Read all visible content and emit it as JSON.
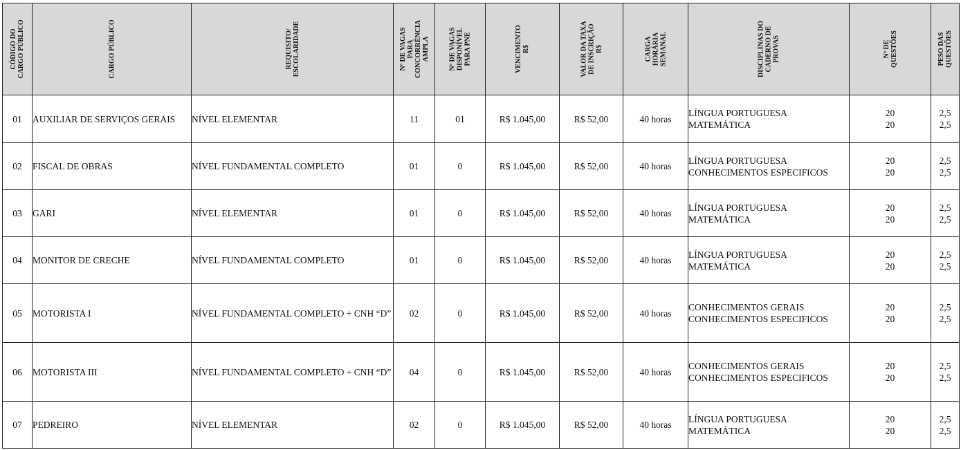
{
  "headers": {
    "codigo": "CÓDIGO DO\nCARGO PÚBLICO",
    "cargo": "CARGO PÚBLICO",
    "requisito": "REQUISITO/\nESCOLARIDADE",
    "vagas_ampla": "Nº DE VAGAS\nPARA\nCONCORRÊNCIA\nAMPLA",
    "vagas_pne": "Nº DE VAGAS\nDISPONÍVEL\nPARA PNE",
    "vencimento": "VENCIMENTO\nR$",
    "taxa": "VALOR DA TAXA\nDE INSCRIÇÃO\nR$",
    "carga": "CARGA\nHORÁRIA\nSEMANAL",
    "disciplinas": "DISCIPLINAS DO\nCADERNO DE\nPROVAS",
    "questoes": "Nº DE\nQUESTÕES",
    "peso": "PESO DAS\nQUESTÕES"
  },
  "rows": [
    {
      "codigo": "01",
      "cargo": "AUXILIAR DE SERVIÇOS GERAIS",
      "requisito": "NÍVEL ELEMENTAR",
      "vagas_ampla": "11",
      "vagas_pne": "01",
      "vencimento": "R$ 1.045,00",
      "taxa": "R$ 52,00",
      "carga": "40 horas",
      "disciplinas": [
        "LÍNGUA PORTUGUESA",
        "MATEMÁTICA"
      ],
      "questoes": [
        "20",
        "20"
      ],
      "peso": [
        "2,5",
        "2,5"
      ]
    },
    {
      "codigo": "02",
      "cargo": "FISCAL DE OBRAS",
      "requisito": "NÍVEL FUNDAMENTAL COMPLETO",
      "vagas_ampla": "01",
      "vagas_pne": "0",
      "vencimento": "R$ 1.045,00",
      "taxa": "R$ 52,00",
      "carga": "40 horas",
      "disciplinas": [
        "LÍNGUA PORTUGUESA",
        "CONHECIMENTOS ESPECIFICOS"
      ],
      "questoes": [
        "20",
        "20"
      ],
      "peso": [
        "2,5",
        "2,5"
      ]
    },
    {
      "codigo": "03",
      "cargo": "GARI",
      "requisito": "NÍVEL ELEMENTAR",
      "vagas_ampla": "01",
      "vagas_pne": "0",
      "vencimento": "R$ 1.045,00",
      "taxa": "R$ 52,00",
      "carga": "40 horas",
      "disciplinas": [
        "LÍNGUA PORTUGUESA",
        "MATEMÁTICA"
      ],
      "questoes": [
        "20",
        "20"
      ],
      "peso": [
        "2,5",
        "2,5"
      ]
    },
    {
      "codigo": "04",
      "cargo": "MONITOR DE CRECHE",
      "requisito": "NÍVEL FUNDAMENTAL COMPLETO",
      "vagas_ampla": "01",
      "vagas_pne": "0",
      "vencimento": "R$ 1.045,00",
      "taxa": "R$ 52,00",
      "carga": "40 horas",
      "disciplinas": [
        "LÍNGUA PORTUGUESA",
        "MATEMÁTICA"
      ],
      "questoes": [
        "20",
        "20"
      ],
      "peso": [
        "2,5",
        "2,5"
      ]
    },
    {
      "codigo": "05",
      "cargo": "MOTORISTA I",
      "requisito": "NÍVEL FUNDAMENTAL COMPLETO + CNH “D”",
      "vagas_ampla": "02",
      "vagas_pne": "0",
      "vencimento": "R$ 1.045,00",
      "taxa": "R$ 52,00",
      "carga": "40 horas",
      "disciplinas": [
        "CONHECIMENTOS GERAIS",
        "CONHECIMENTOS ESPECIFICOS"
      ],
      "questoes": [
        "20",
        "20"
      ],
      "peso": [
        "2,5",
        "2,5"
      ]
    },
    {
      "codigo": "06",
      "cargo": "MOTORISTA III",
      "requisito": "NÍVEL FUNDAMENTAL COMPLETO + CNH “D”",
      "vagas_ampla": "04",
      "vagas_pne": "0",
      "vencimento": "R$ 1.045,00",
      "taxa": "R$ 52,00",
      "carga": "40 horas",
      "disciplinas": [
        "CONHECIMENTOS GERAIS",
        "CONHECIMENTOS ESPECIFICOS"
      ],
      "questoes": [
        "20",
        "20"
      ],
      "peso": [
        "2,5",
        "2,5"
      ]
    },
    {
      "codigo": "07",
      "cargo": "PEDREIRO",
      "requisito": "NÍVEL ELEMENTAR",
      "vagas_ampla": "02",
      "vagas_pne": "0",
      "vencimento": "R$ 1.045,00",
      "taxa": "R$ 52,00",
      "carga": "40 horas",
      "disciplinas": [
        "LÍNGUA PORTUGUESA",
        "MATEMÁTICA"
      ],
      "questoes": [
        "20",
        "20"
      ],
      "peso": [
        "2,5",
        "2,5"
      ]
    }
  ]
}
